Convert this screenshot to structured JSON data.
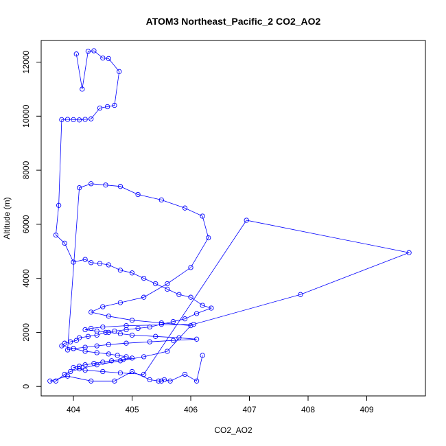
{
  "chart_data": {
    "type": "line",
    "title": "ATOM3 Northeast_Pacific_2 CO2_AO2",
    "xlabel": "CO2_AO2",
    "ylabel": "Altitude (m)",
    "xlim": [
      403.45,
      410.0
    ],
    "ylim": [
      -350,
      12800
    ],
    "xticks": [
      404,
      405,
      406,
      407,
      408,
      409
    ],
    "yticks": [
      0,
      2000,
      4000,
      6000,
      8000,
      10000,
      12000
    ],
    "grid": false,
    "colors": {
      "series": "#0000ff"
    },
    "series": [
      {
        "x": [
          404.05,
          404.15,
          404.25,
          404.35,
          404.5,
          404.6,
          404.78,
          404.7,
          404.58,
          404.45,
          404.3,
          404.2,
          404.1,
          404.0,
          403.9,
          403.8,
          403.75,
          403.7,
          403.85,
          404.0,
          404.2,
          404.3,
          404.45,
          404.6,
          404.8,
          405.0,
          405.2,
          405.4,
          405.6,
          405.8,
          406.0,
          406.2,
          406.35,
          406.1,
          405.9,
          405.7,
          405.5,
          405.3,
          405.1,
          404.9,
          404.7,
          404.55,
          404.4,
          404.25,
          404.1,
          404.05,
          403.95,
          403.85,
          403.8,
          404.0,
          404.2,
          404.4,
          404.6,
          404.75,
          404.9,
          405.0,
          404.85,
          404.65,
          404.5,
          404.35,
          404.2,
          404.1,
          404.0,
          404.2,
          404.5,
          404.8,
          405.2,
          406.95,
          409.72,
          407.87,
          406.05,
          404.9,
          404.5,
          404.3,
          404.2,
          404.4,
          404.6,
          404.8,
          405.0,
          405.4,
          405.8,
          406.1,
          405.7,
          405.3,
          404.9,
          404.6,
          404.4,
          404.2,
          404.0,
          403.9,
          404.1,
          404.3,
          404.55,
          404.8,
          405.1,
          405.5,
          405.9,
          406.2,
          406.3,
          406.0,
          405.6,
          405.2,
          404.8,
          404.5,
          404.3,
          404.6,
          405.0,
          405.5,
          406.0,
          405.6,
          405.2,
          404.8,
          404.4,
          404.1,
          403.95,
          403.85,
          403.7,
          403.6,
          403.9,
          404.3,
          404.7,
          405.0,
          405.3,
          405.45,
          405.5,
          405.55,
          405.65,
          405.9,
          406.1,
          406.2
        ],
        "y": [
          12300,
          11000,
          12400,
          12420,
          12150,
          12130,
          11650,
          10400,
          10350,
          10300,
          9900,
          9880,
          9860,
          9870,
          9880,
          9870,
          6700,
          5600,
          5300,
          4600,
          4700,
          4580,
          4550,
          4500,
          4300,
          4200,
          4000,
          3800,
          3600,
          3400,
          3300,
          3000,
          2900,
          2700,
          2500,
          2400,
          2300,
          2200,
          2150,
          2100,
          2050,
          2000,
          1900,
          1850,
          1800,
          1700,
          1650,
          1600,
          1500,
          1400,
          1300,
          1250,
          1200,
          1150,
          1100,
          1050,
          1000,
          950,
          900,
          850,
          800,
          750,
          700,
          600,
          550,
          500,
          450,
          6150,
          4950,
          3400,
          2300,
          2250,
          2200,
          2150,
          2100,
          2050,
          2000,
          1950,
          1900,
          1850,
          1800,
          1750,
          1700,
          1650,
          1600,
          1550,
          1500,
          1450,
          1400,
          1350,
          7350,
          7500,
          7450,
          7400,
          7100,
          6900,
          6600,
          6300,
          5500,
          4400,
          3800,
          3300,
          3100,
          2950,
          2750,
          2600,
          2450,
          2350,
          2250,
          1300,
          1100,
          950,
          800,
          650,
          550,
          450,
          200,
          200,
          380,
          200,
          200,
          550,
          250,
          200,
          200,
          250,
          200,
          450,
          200,
          1150
        ]
      }
    ]
  }
}
